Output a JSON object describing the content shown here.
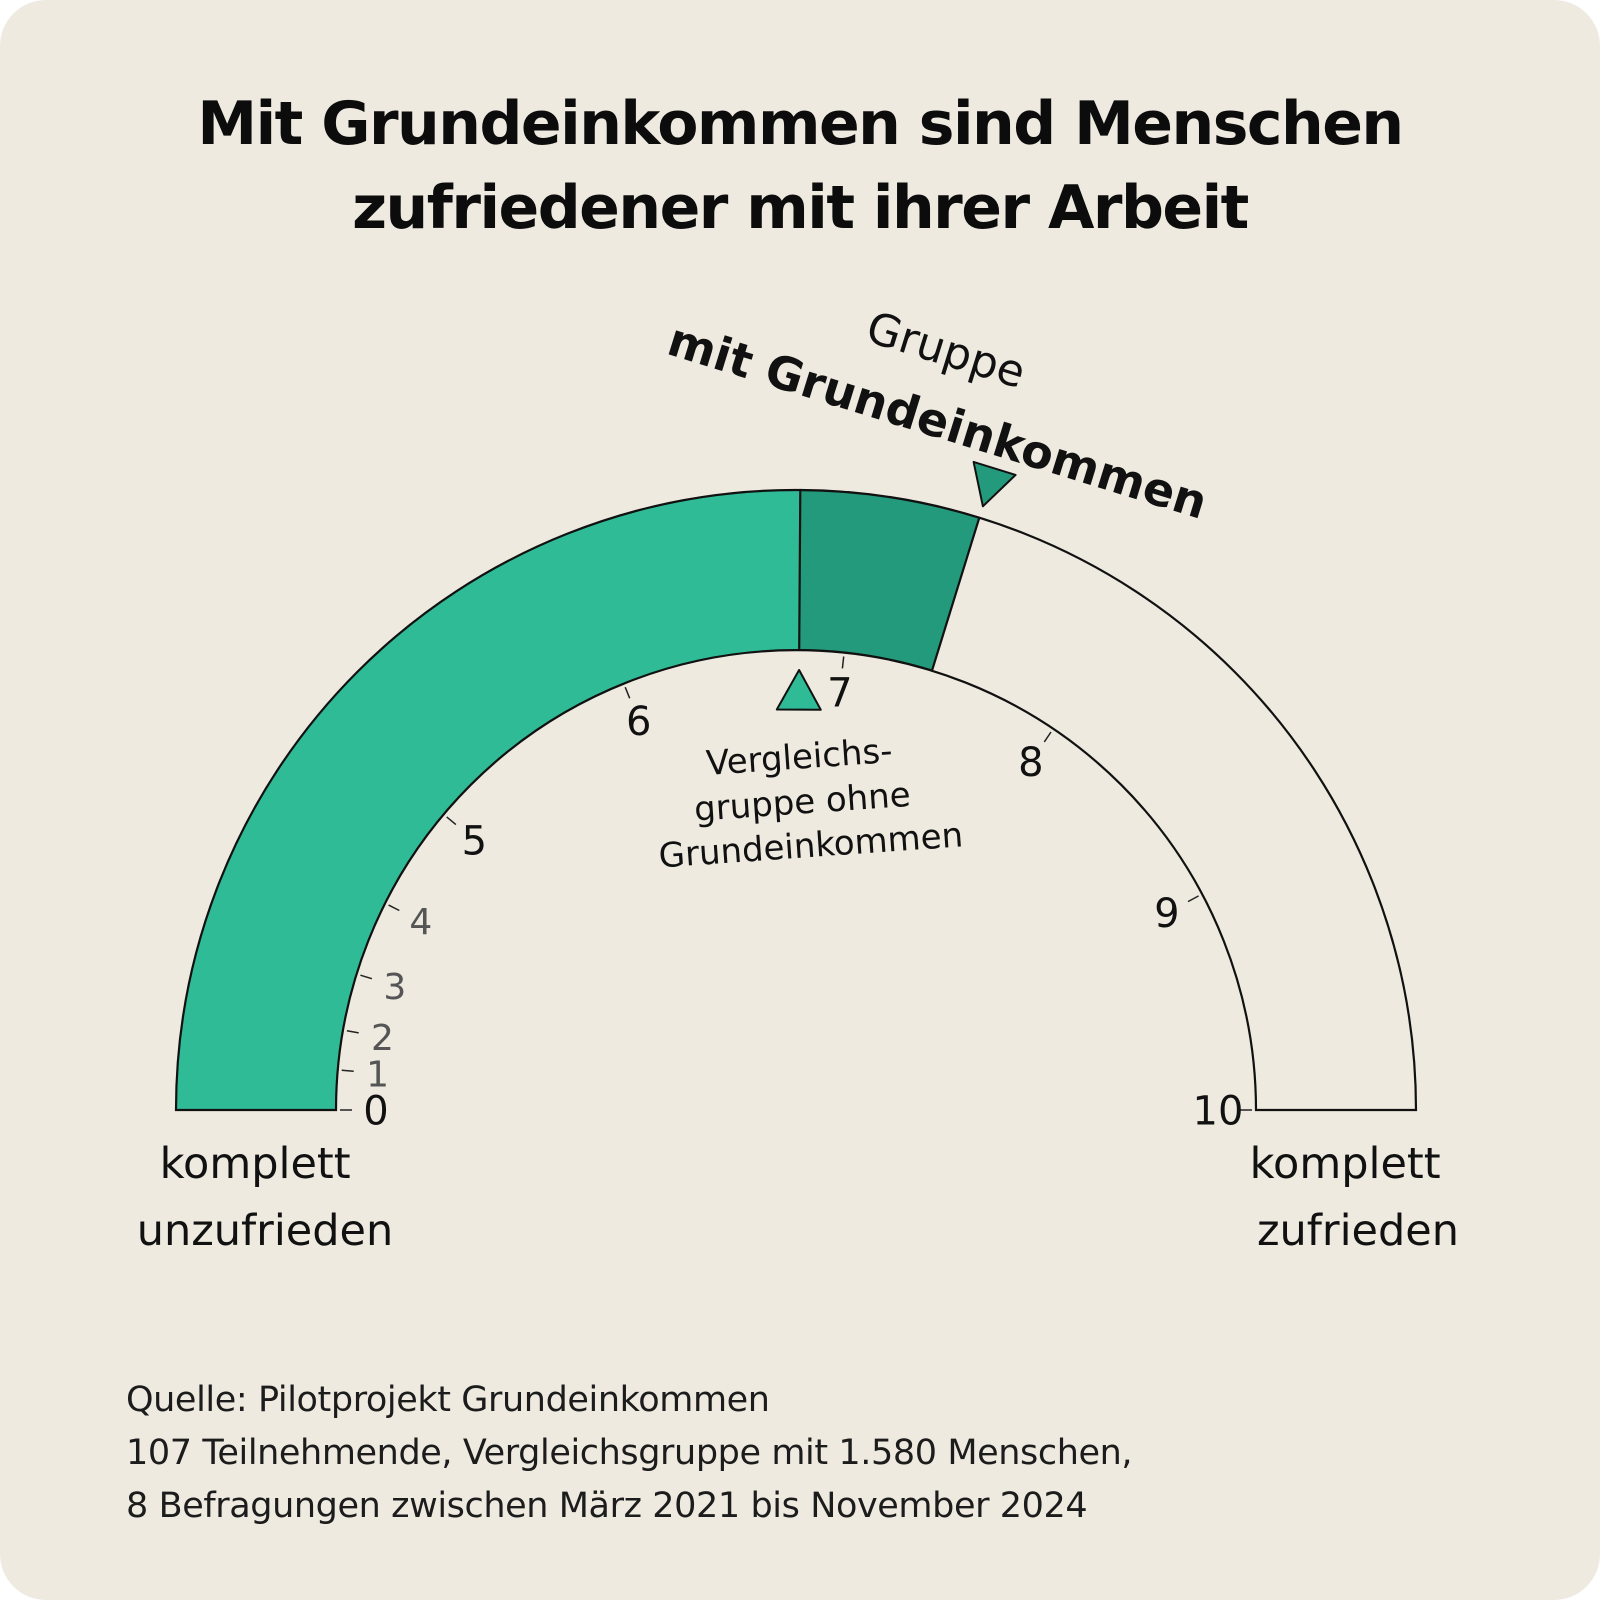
{
  "title": {
    "line1": "Mit Grundeinkommen sind Menschen",
    "line2": "zufriedener mit ihrer Arbeit"
  },
  "chart_data": {
    "type": "gauge",
    "scale_min": 0,
    "scale_max": 10,
    "ticks": [
      "0",
      "1",
      "2",
      "3",
      "4",
      "5",
      "6",
      "7",
      "8",
      "9",
      "10"
    ],
    "comparison_group": {
      "value": 6.8,
      "label_lines": [
        "Vergleichs-",
        "gruppe ohne",
        "Grundeinkommen"
      ]
    },
    "basic_income_group": {
      "value": 7.4,
      "label_line1": "Gruppe",
      "label_line2": "mit Grundeinkommen"
    },
    "left_label": [
      "komplett",
      "unzufrieden"
    ],
    "right_label": [
      "komplett",
      "zufrieden"
    ],
    "colors": {
      "comparison_fill": "#30bb97",
      "difference_fill": "#249a7c",
      "empty_fill": "#eeeae0",
      "outline": "#111111",
      "minor_tick_text": "#555555"
    }
  },
  "footer": {
    "line1": "Quelle: Pilotprojekt Grundeinkommen",
    "line2": "107 Teilnehmende, Vergleichsgruppe mit 1.580 Menschen,",
    "line3": "8 Befragungen zwischen März 2021 bis November 2024"
  }
}
